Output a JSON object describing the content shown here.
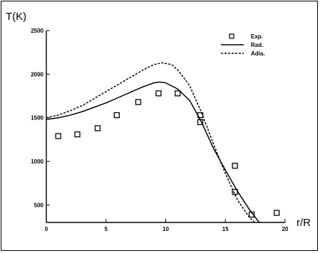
{
  "chart_data": {
    "type": "line",
    "ylabel": "T(K)",
    "xlabel": "r/R",
    "xlim": [
      0,
      20
    ],
    "ylim": [
      300,
      2500
    ],
    "x_ticks": [
      0,
      5,
      10,
      15,
      20
    ],
    "y_ticks": [
      500,
      1000,
      1500,
      2000,
      2500
    ],
    "grid": false,
    "legend_position": "top-right",
    "series": [
      {
        "name": "Exp.",
        "style": "markers",
        "marker": "open-square",
        "color": "#000000",
        "x": [
          1.0,
          2.6,
          4.3,
          5.9,
          7.7,
          9.4,
          11.0,
          12.9,
          12.9,
          15.8,
          15.8,
          17.2,
          19.3
        ],
        "y": [
          1290,
          1310,
          1380,
          1530,
          1680,
          1780,
          1780,
          1530,
          1450,
          950,
          650,
          390,
          410
        ]
      },
      {
        "name": "Rad.",
        "style": "solid",
        "color": "#000000",
        "x": [
          0,
          1,
          2,
          3,
          4,
          5,
          6,
          7,
          8,
          9,
          9.5,
          10,
          11,
          12,
          13,
          14,
          15,
          16,
          17,
          18
        ],
        "y": [
          1480,
          1500,
          1530,
          1570,
          1620,
          1670,
          1730,
          1790,
          1850,
          1900,
          1910,
          1900,
          1830,
          1700,
          1450,
          1150,
          900,
          660,
          450,
          270
        ]
      },
      {
        "name": "Adia.",
        "style": "dashed",
        "color": "#000000",
        "x": [
          0,
          1,
          2,
          3,
          4,
          5,
          6,
          7,
          8,
          9,
          9.7,
          10.5,
          11,
          12,
          13,
          14,
          15,
          16,
          17,
          17.6
        ],
        "y": [
          1500,
          1530,
          1580,
          1640,
          1720,
          1800,
          1880,
          1960,
          2040,
          2110,
          2130,
          2110,
          2050,
          1870,
          1560,
          1200,
          860,
          560,
          360,
          280
        ]
      }
    ]
  }
}
